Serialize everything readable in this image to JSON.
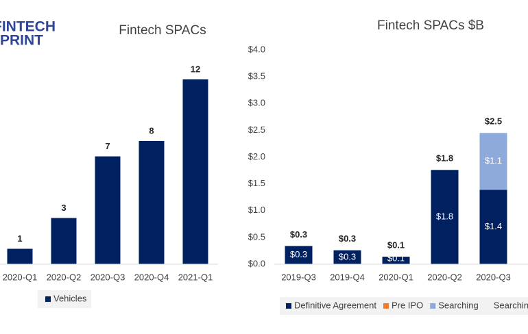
{
  "logo": [
    "FINTECH",
    "SPRINT"
  ],
  "chart_data": [
    {
      "type": "bar",
      "title": "Fintech SPACs",
      "categories": [
        "2020-Q1",
        "2020-Q2",
        "2020-Q3",
        "2020-Q4",
        "2021-Q1"
      ],
      "series": [
        {
          "name": "Vehicles",
          "color": "#002060",
          "values": [
            1,
            3,
            7,
            8,
            12
          ]
        }
      ],
      "ylim": [
        0,
        13
      ]
    },
    {
      "type": "stacked_bar",
      "title": "Fintech SPACs $B",
      "categories": [
        "2019-Q3",
        "2019-Q4",
        "2020-Q1",
        "2020-Q2",
        "2020-Q3"
      ],
      "series": [
        {
          "name": "Definitive Agreement",
          "color": "#002060",
          "values": [
            0.34,
            0.26,
            0.14,
            1.76,
            1.39
          ],
          "value_labels": [
            "$0.3",
            "$0.3",
            "$0.1",
            "$1.8",
            "$1.4"
          ]
        },
        {
          "name": "Pre IPO",
          "color": "#ed7d31",
          "values": [
            0,
            0,
            0,
            0,
            0
          ]
        },
        {
          "name": "Searching",
          "color": "#8eaadb",
          "values": [
            0,
            0,
            0,
            0,
            1.06
          ],
          "value_labels": [
            null,
            null,
            null,
            null,
            "$1.1"
          ]
        },
        {
          "name": "Searching",
          "color": "#f2f2f2",
          "values": [
            0,
            0,
            0,
            0,
            0
          ]
        }
      ],
      "totals": [
        0.34,
        0.26,
        0.14,
        1.76,
        2.45
      ],
      "total_labels": [
        "$0.3",
        "$0.3",
        "$0.1",
        "$1.8",
        "$2.5"
      ],
      "ylim": [
        0,
        4
      ],
      "yticks": [
        {
          "value": 0,
          "label": "$0.0"
        },
        {
          "value": 0.5,
          "label": "$0.5"
        },
        {
          "value": 1,
          "label": "$1.0"
        },
        {
          "value": 1.5,
          "label": "$1.5"
        },
        {
          "value": 2,
          "label": "$2.0"
        },
        {
          "value": 2.5,
          "label": "$2.5"
        },
        {
          "value": 3,
          "label": "$3.0"
        },
        {
          "value": 3.5,
          "label": "$3.5"
        },
        {
          "value": 4,
          "label": "$4.0"
        }
      ]
    }
  ]
}
